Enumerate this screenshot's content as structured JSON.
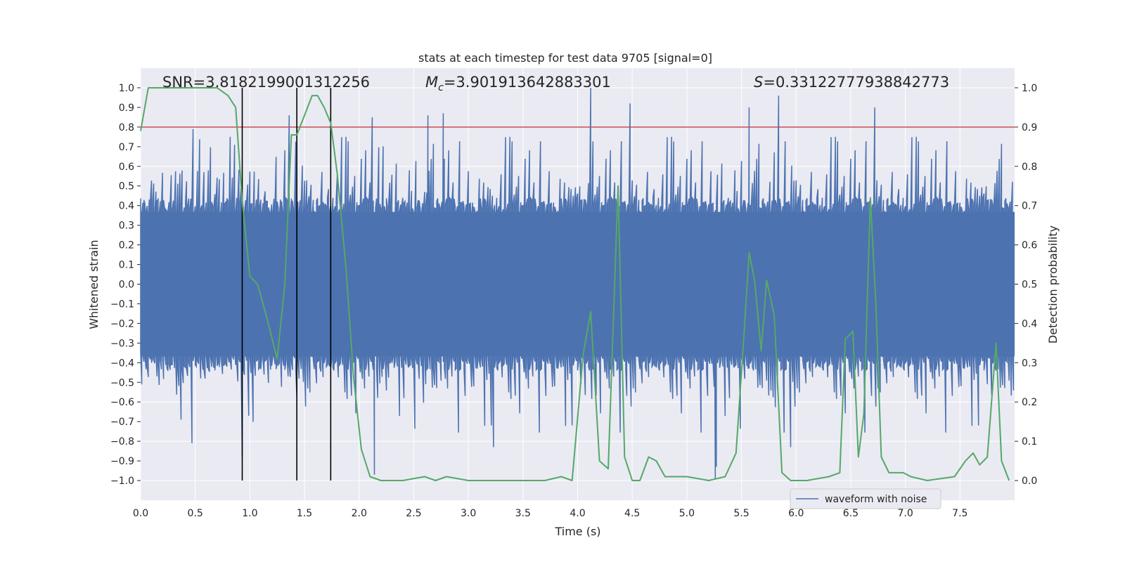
{
  "chart_data": {
    "type": "line",
    "title": "stats at each timestep for test data 9705 [signal=0]",
    "xlabel": "Time (s)",
    "ylabel": "Whitened strain",
    "y2label": "Detection probability",
    "xlim": [
      0.0,
      8.0
    ],
    "ylim": [
      -1.1,
      1.1
    ],
    "y2lim": [
      -0.05,
      1.05
    ],
    "xticks": [
      0.0,
      0.5,
      1.0,
      1.5,
      2.0,
      2.5,
      3.0,
      3.5,
      4.0,
      4.5,
      5.0,
      5.5,
      6.0,
      6.5,
      7.0,
      7.5
    ],
    "xtick_labels": [
      "0.0",
      "0.5",
      "1.0",
      "1.5",
      "2.0",
      "2.5",
      "3.0",
      "3.5",
      "4.0",
      "4.5",
      "5.0",
      "5.5",
      "6.0",
      "6.5",
      "7.0",
      "7.5"
    ],
    "yticks": [
      1.0,
      0.9,
      0.8,
      0.7,
      0.6,
      0.5,
      0.4,
      0.3,
      0.2,
      0.1,
      0.0,
      -0.1,
      -0.2,
      -0.3,
      -0.4,
      -0.5,
      -0.6,
      -0.7,
      -0.8,
      -0.9,
      -1.0
    ],
    "ytick_labels": [
      "1.0",
      "0.9",
      "0.8",
      "0.7",
      "0.6",
      "0.5",
      "0.4",
      "0.3",
      "0.2",
      "0.1",
      "0.0",
      "−0.1",
      "−0.2",
      "−0.3",
      "−0.4",
      "−0.5",
      "−0.6",
      "−0.7",
      "−0.8",
      "−0.9",
      "−1.0"
    ],
    "y2ticks": [
      1.0,
      0.9,
      0.8,
      0.7,
      0.6,
      0.5,
      0.4,
      0.3,
      0.2,
      0.1,
      0.0
    ],
    "y2tick_labels": [
      "1.0",
      "0.9",
      "0.8",
      "0.7",
      "0.6",
      "0.5",
      "0.4",
      "0.3",
      "0.2",
      "0.1",
      "0.0"
    ],
    "legend": {
      "label": "waveform with noise",
      "loc": "lower-right"
    },
    "annotations": {
      "snr": "SNR=3.8182199001312256",
      "mc_symbol": "M",
      "mc_sub": "c",
      "mc_value": "=3.901913642883301",
      "s_symbol": "S",
      "s_value": "=0.33122777938842773"
    },
    "threshold": 0.8,
    "vlines": [
      0.93,
      1.43,
      1.74
    ],
    "waveform": {
      "name": "waveform with noise",
      "color": "#4c72b0",
      "sample_count": 800,
      "core_envelope": 0.4,
      "peaks": [
        {
          "t": 0.48,
          "y": 0.79
        },
        {
          "t": 0.82,
          "y": 0.75
        },
        {
          "t": 1.36,
          "y": 0.86
        },
        {
          "t": 2.12,
          "y": 0.85
        },
        {
          "t": 2.63,
          "y": 0.86
        },
        {
          "t": 2.77,
          "y": 0.87
        },
        {
          "t": 4.12,
          "y": 1.0
        },
        {
          "t": 4.48,
          "y": 0.92
        },
        {
          "t": 5.57,
          "y": 0.9
        },
        {
          "t": 5.84,
          "y": 0.96
        },
        {
          "t": 6.72,
          "y": 0.9
        },
        {
          "t": 0.47,
          "y": -0.81
        },
        {
          "t": 0.93,
          "y": -0.88
        },
        {
          "t": 2.14,
          "y": -0.97
        },
        {
          "t": 3.23,
          "y": -0.83
        },
        {
          "t": 5.26,
          "y": -0.99
        },
        {
          "t": 5.27,
          "y": -0.93
        },
        {
          "t": 5.95,
          "y": -0.83
        }
      ]
    },
    "probability": {
      "name": "detection probability",
      "color": "#55a868",
      "t": [
        0.0,
        0.07,
        0.15,
        0.3,
        0.5,
        0.7,
        0.8,
        0.87,
        0.93,
        1.0,
        1.07,
        1.15,
        1.25,
        1.32,
        1.38,
        1.43,
        1.5,
        1.57,
        1.62,
        1.68,
        1.74,
        1.8,
        1.88,
        1.95,
        2.02,
        2.1,
        2.2,
        2.4,
        2.6,
        2.7,
        2.8,
        3.0,
        3.2,
        3.5,
        3.7,
        3.85,
        3.95,
        4.05,
        4.12,
        4.2,
        4.28,
        4.37,
        4.43,
        4.5,
        4.57,
        4.65,
        4.72,
        4.8,
        4.9,
        5.0,
        5.2,
        5.35,
        5.45,
        5.52,
        5.57,
        5.62,
        5.68,
        5.73,
        5.8,
        5.87,
        5.95,
        6.1,
        6.3,
        6.4,
        6.45,
        6.52,
        6.57,
        6.62,
        6.68,
        6.73,
        6.78,
        6.85,
        6.9,
        6.98,
        7.05,
        7.2,
        7.45,
        7.55,
        7.62,
        7.68,
        7.75,
        7.83,
        7.88,
        7.95
      ],
      "p": [
        0.89,
        1.0,
        1.0,
        1.0,
        1.0,
        1.0,
        0.98,
        0.95,
        0.71,
        0.52,
        0.5,
        0.42,
        0.31,
        0.5,
        0.88,
        0.88,
        0.93,
        0.98,
        0.98,
        0.95,
        0.91,
        0.78,
        0.54,
        0.26,
        0.08,
        0.01,
        0.0,
        0.0,
        0.01,
        0.0,
        0.01,
        0.0,
        0.0,
        0.0,
        0.0,
        0.01,
        0.0,
        0.32,
        0.43,
        0.05,
        0.03,
        0.75,
        0.06,
        0.0,
        0.0,
        0.06,
        0.05,
        0.01,
        0.01,
        0.01,
        0.0,
        0.01,
        0.07,
        0.36,
        0.58,
        0.51,
        0.33,
        0.51,
        0.42,
        0.02,
        0.0,
        0.0,
        0.01,
        0.02,
        0.36,
        0.38,
        0.06,
        0.17,
        0.72,
        0.45,
        0.06,
        0.02,
        0.02,
        0.02,
        0.01,
        0.0,
        0.01,
        0.05,
        0.07,
        0.04,
        0.06,
        0.35,
        0.05,
        0.0
      ]
    },
    "colors": {
      "background": "#eaeaf2",
      "grid": "#ffffff",
      "threshold": "#c44e52",
      "vline": "#000000"
    }
  }
}
